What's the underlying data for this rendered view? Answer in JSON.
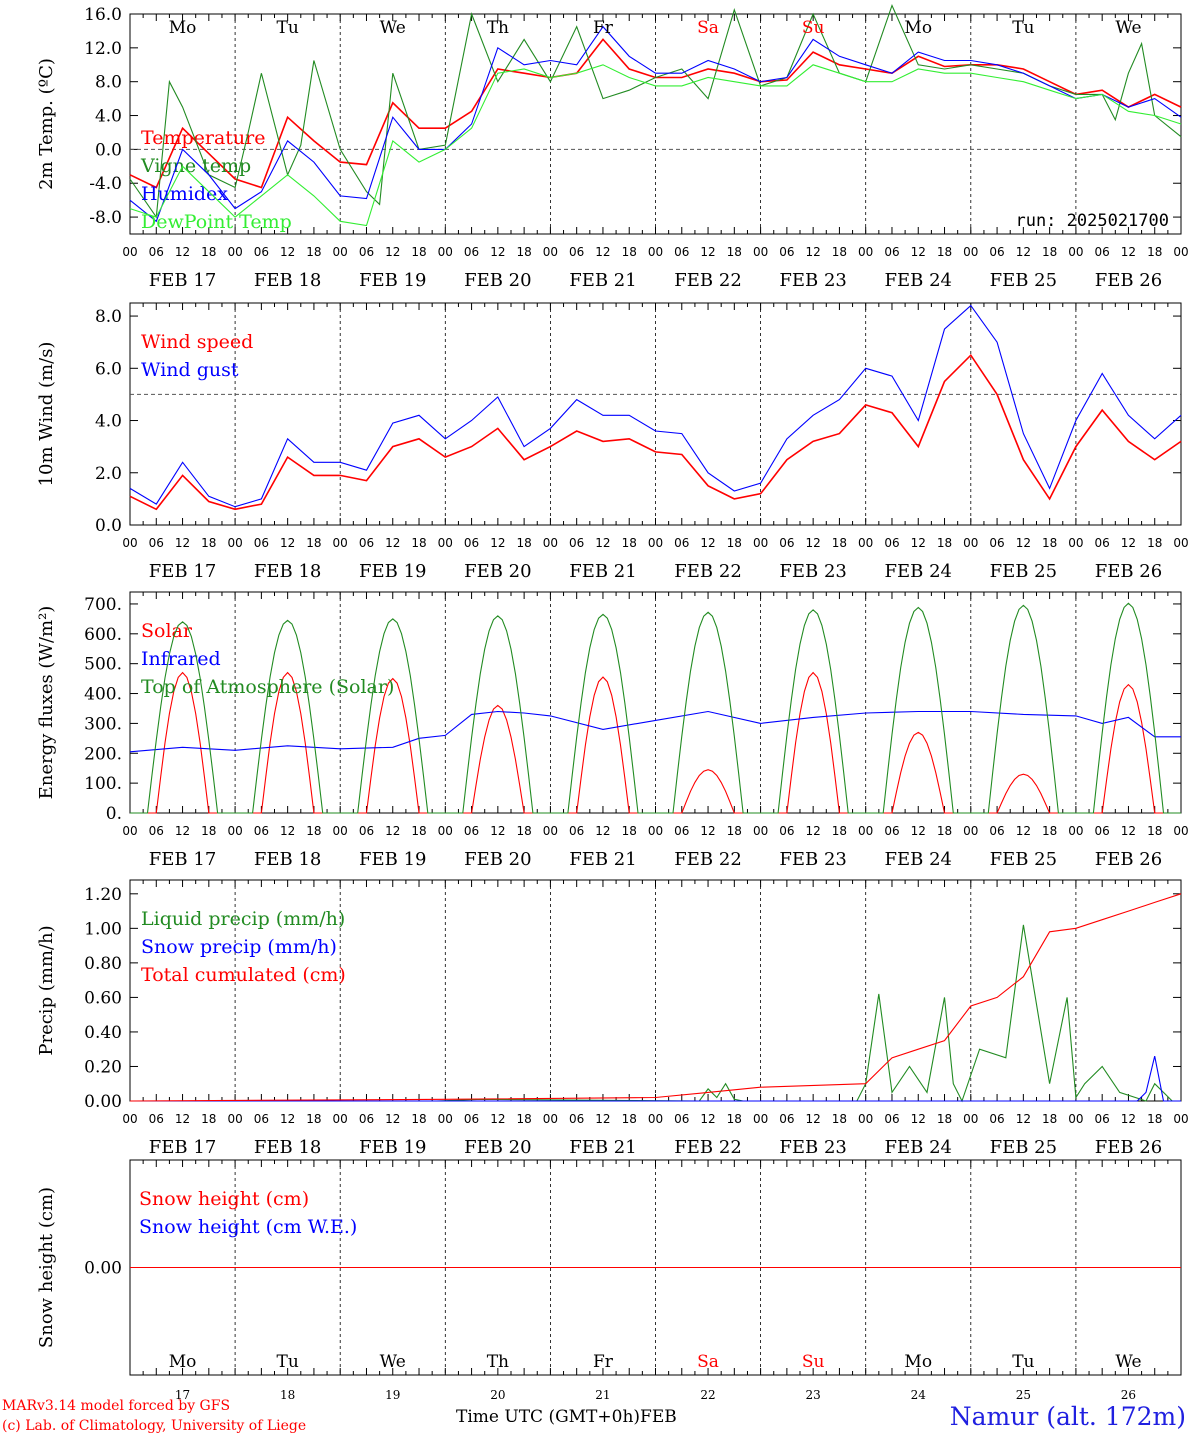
{
  "days": [
    "FEB 17",
    "FEB 18",
    "FEB 19",
    "FEB 20",
    "FEB 21",
    "FEB 22",
    "FEB 23",
    "FEB 24",
    "FEB 25",
    "FEB 26"
  ],
  "weekdays": [
    "Mo",
    "Tu",
    "We",
    "Th",
    "Fr",
    "Sa",
    "Su",
    "Mo",
    "Tu",
    "We"
  ],
  "weekday_colors": [
    "#000000",
    "#000000",
    "#000000",
    "#000000",
    "#000000",
    "#ff0000",
    "#ff0000",
    "#000000",
    "#000000",
    "#000000"
  ],
  "day_numbers": [
    "17",
    "18",
    "19",
    "20",
    "21",
    "22",
    "23",
    "24",
    "25",
    "26"
  ],
  "hour_ticks": [
    "00",
    "06",
    "12",
    "18"
  ],
  "final_hour_tick": "00",
  "footer": {
    "model": "MARv3.14 model forced by GFS",
    "lab": "(c) Lab. of Climatology, University of Liege",
    "time_label": "Time UTC (GMT+0h)",
    "month": "FEB",
    "station": "Namur (alt. 172m)"
  },
  "chart_data": [
    {
      "type": "line",
      "ylabel": "2m Temp. (ºC)",
      "ylim": [
        -10,
        16
      ],
      "yticks": [
        "16.0",
        "12.0",
        "8.0",
        "4.0",
        "0.0",
        "-4.0",
        "-8.0"
      ],
      "ytick_values": [
        16,
        12,
        8,
        4,
        0,
        -4,
        -8
      ],
      "dashed_ref": 0,
      "run": "run: 2025021700",
      "show_weekdays": true,
      "x_unit": "hours since 2025-02-17 00 UTC",
      "series": [
        {
          "name": "Temperature",
          "color": "#ff0000",
          "x": [
            0,
            6,
            12,
            18,
            24,
            30,
            36,
            42,
            48,
            54,
            60,
            66,
            72,
            78,
            84,
            90,
            96,
            102,
            108,
            114,
            120,
            126,
            132,
            138,
            144,
            150,
            156,
            162,
            168,
            174,
            180,
            186,
            192,
            198,
            204,
            210,
            216,
            222,
            228,
            234,
            240
          ],
          "y": [
            -3.0,
            -4.5,
            2.5,
            -0.5,
            -3.5,
            -4.5,
            3.8,
            1.0,
            -1.5,
            -1.8,
            5.5,
            2.5,
            2.5,
            4.5,
            9.5,
            9.0,
            8.5,
            9.0,
            13.0,
            9.5,
            8.5,
            8.5,
            9.5,
            9.0,
            8.0,
            8.2,
            11.5,
            10.0,
            9.5,
            9.0,
            11.0,
            9.8,
            10.0,
            10.0,
            9.5,
            8.0,
            6.5,
            7.0,
            5.0,
            6.5,
            5.0
          ]
        },
        {
          "name": "Vigne temp",
          "color": "#228b22",
          "x": [
            0,
            6,
            9,
            12,
            18,
            24,
            27,
            30,
            36,
            39,
            42,
            48,
            54,
            57,
            60,
            66,
            72,
            78,
            84,
            90,
            96,
            102,
            108,
            114,
            120,
            126,
            132,
            138,
            144,
            150,
            156,
            162,
            168,
            174,
            180,
            186,
            192,
            198,
            204,
            210,
            216,
            222,
            225,
            228,
            231,
            234,
            240
          ],
          "y": [
            -3.5,
            -8.0,
            8.0,
            5.0,
            -3.0,
            -4.5,
            2.0,
            9.0,
            -3.0,
            0.5,
            10.5,
            0.0,
            -5.0,
            -6.5,
            9.0,
            0.0,
            0.5,
            16.0,
            8.0,
            13.0,
            8.0,
            14.5,
            6.0,
            7.0,
            8.5,
            9.5,
            6.0,
            16.5,
            7.5,
            8.5,
            16.0,
            9.0,
            8.0,
            17.0,
            10.0,
            9.5,
            10.0,
            9.5,
            9.0,
            7.5,
            6.5,
            6.5,
            3.5,
            9.0,
            12.5,
            4.0,
            1.5
          ]
        },
        {
          "name": "Humidex",
          "color": "#0000ff",
          "x": [
            0,
            6,
            12,
            18,
            24,
            30,
            36,
            42,
            48,
            54,
            60,
            66,
            72,
            78,
            84,
            90,
            96,
            102,
            108,
            114,
            120,
            126,
            132,
            138,
            144,
            150,
            156,
            162,
            168,
            174,
            180,
            186,
            192,
            198,
            204,
            210,
            216,
            222,
            228,
            234,
            240
          ],
          "y": [
            -6.0,
            -8.5,
            0.0,
            -3.0,
            -7.0,
            -5.0,
            1.0,
            -1.5,
            -5.5,
            -5.8,
            3.8,
            0.0,
            0.0,
            3.0,
            12.0,
            10.0,
            10.5,
            10.0,
            14.5,
            11.0,
            9.0,
            9.0,
            10.5,
            9.5,
            8.0,
            8.5,
            13.0,
            11.0,
            10.0,
            9.0,
            11.5,
            10.5,
            10.5,
            10.0,
            9.0,
            7.5,
            6.0,
            6.5,
            5.0,
            6.0,
            3.8
          ]
        },
        {
          "name": "DewPoint Temp",
          "color": "#33ee33",
          "x": [
            0,
            6,
            12,
            18,
            24,
            30,
            36,
            42,
            48,
            54,
            60,
            66,
            72,
            78,
            84,
            90,
            96,
            102,
            108,
            114,
            120,
            126,
            132,
            138,
            144,
            150,
            156,
            162,
            168,
            174,
            180,
            186,
            192,
            198,
            204,
            210,
            216,
            222,
            228,
            234,
            240
          ],
          "y": [
            -7.0,
            -8.0,
            -2.0,
            -5.0,
            -8.0,
            -5.5,
            -3.0,
            -5.5,
            -8.5,
            -9.0,
            1.0,
            -1.5,
            0.0,
            2.5,
            9.0,
            9.5,
            8.5,
            9.0,
            10.0,
            8.5,
            7.5,
            7.5,
            8.5,
            8.0,
            7.5,
            7.5,
            10.0,
            9.0,
            8.0,
            8.0,
            9.5,
            9.0,
            9.0,
            8.5,
            8.0,
            7.0,
            6.0,
            6.5,
            4.5,
            4.0,
            3.0
          ]
        }
      ]
    },
    {
      "type": "line",
      "ylabel": "10m Wind (m/s)",
      "ylim": [
        0,
        8.5
      ],
      "yticks": [
        "8.0",
        "6.0",
        "4.0",
        "2.0",
        "0.0"
      ],
      "ytick_values": [
        8,
        6,
        4,
        2,
        0
      ],
      "dashed_ref": 5,
      "x_unit": "hours since 2025-02-17 00 UTC",
      "series": [
        {
          "name": "Wind speed",
          "color": "#ff0000",
          "x": [
            0,
            6,
            12,
            18,
            24,
            30,
            36,
            42,
            48,
            54,
            60,
            66,
            72,
            78,
            84,
            90,
            96,
            102,
            108,
            114,
            120,
            126,
            132,
            138,
            144,
            150,
            156,
            162,
            168,
            174,
            180,
            186,
            192,
            198,
            204,
            210,
            216,
            222,
            228,
            234,
            240
          ],
          "y": [
            1.1,
            0.6,
            1.9,
            0.9,
            0.6,
            0.8,
            2.6,
            1.9,
            1.9,
            1.7,
            3.0,
            3.3,
            2.6,
            3.0,
            3.7,
            2.5,
            3.0,
            3.6,
            3.2,
            3.3,
            2.8,
            2.7,
            1.5,
            1.0,
            1.2,
            2.5,
            3.2,
            3.5,
            4.6,
            4.3,
            3.0,
            5.5,
            6.5,
            5.0,
            2.5,
            1.0,
            3.0,
            4.4,
            3.2,
            2.5,
            3.2
          ]
        },
        {
          "name": "Wind gust",
          "color": "#0000ff",
          "x": [
            0,
            6,
            12,
            18,
            24,
            30,
            36,
            42,
            48,
            54,
            60,
            66,
            72,
            78,
            84,
            90,
            96,
            102,
            108,
            114,
            120,
            126,
            132,
            138,
            144,
            150,
            156,
            162,
            168,
            174,
            180,
            186,
            192,
            198,
            204,
            210,
            216,
            222,
            228,
            234,
            240
          ],
          "y": [
            1.4,
            0.8,
            2.4,
            1.1,
            0.7,
            1.0,
            3.3,
            2.4,
            2.4,
            2.1,
            3.9,
            4.2,
            3.3,
            4.0,
            4.9,
            3.0,
            3.7,
            4.8,
            4.2,
            4.2,
            3.6,
            3.5,
            2.0,
            1.3,
            1.6,
            3.3,
            4.2,
            4.8,
            6.0,
            5.7,
            4.0,
            7.5,
            8.4,
            7.0,
            3.5,
            1.4,
            4.0,
            5.8,
            4.2,
            3.3,
            4.2
          ]
        }
      ]
    },
    {
      "type": "line",
      "ylabel": "Energy fluxes (W/m²)",
      "ylim": [
        0,
        740
      ],
      "yticks": [
        "700.",
        "600.",
        "500.",
        "400.",
        "300.",
        "200.",
        "100.",
        "0."
      ],
      "ytick_values": [
        700,
        600,
        500,
        400,
        300,
        200,
        100,
        0
      ],
      "x_unit": "hours since 2025-02-17 00 UTC",
      "solar_peaks": [
        470,
        470,
        450,
        360,
        455,
        145,
        470,
        270,
        130,
        430
      ],
      "toa_peaks": [
        640,
        645,
        650,
        660,
        665,
        672,
        680,
        688,
        695,
        702
      ],
      "series": [
        {
          "name": "Solar",
          "color": "#ff0000"
        },
        {
          "name": "Infrared",
          "color": "#0000ff",
          "x": [
            0,
            12,
            24,
            36,
            48,
            60,
            66,
            72,
            78,
            84,
            90,
            96,
            108,
            120,
            132,
            144,
            156,
            168,
            180,
            192,
            204,
            216,
            222,
            228,
            234,
            240
          ],
          "y": [
            205,
            220,
            210,
            225,
            215,
            220,
            250,
            260,
            330,
            340,
            335,
            325,
            280,
            310,
            340,
            300,
            320,
            335,
            340,
            340,
            330,
            325,
            300,
            320,
            255,
            255
          ]
        },
        {
          "name": "Top of Atmosphere (Solar)",
          "color": "#228b22"
        }
      ]
    },
    {
      "type": "line",
      "ylabel": "Precip (mm/h)",
      "ylim": [
        0,
        1.28
      ],
      "yticks": [
        "1.20",
        "1.00",
        "0.80",
        "0.60",
        "0.40",
        "0.20",
        "0.00"
      ],
      "ytick_values": [
        1.2,
        1.0,
        0.8,
        0.6,
        0.4,
        0.2,
        0.0
      ],
      "x_unit": "hours since 2025-02-17 00 UTC",
      "series": [
        {
          "name": "Liquid precip (mm/h)",
          "color": "#228b22",
          "x": [
            0,
            70,
            80,
            130,
            132,
            134,
            136,
            138,
            140,
            166,
            168,
            171,
            174,
            178,
            182,
            186,
            188,
            190,
            194,
            200,
            204,
            210,
            214,
            216,
            218,
            222,
            226,
            232,
            234,
            238,
            240
          ],
          "y": [
            0,
            0,
            0.01,
            0,
            0.07,
            0.02,
            0.1,
            0.01,
            0,
            0,
            0.1,
            0.62,
            0.05,
            0.2,
            0.05,
            0.6,
            0.1,
            0.0,
            0.3,
            0.25,
            1.02,
            0.1,
            0.6,
            0.02,
            0.1,
            0.2,
            0.05,
            0.0,
            0.1,
            0.0,
            0.0
          ]
        },
        {
          "name": "Snow precip (mm/h)",
          "color": "#0000ff",
          "x": [
            0,
            230,
            232,
            234,
            236,
            240
          ],
          "y": [
            0,
            0,
            0.05,
            0.26,
            0.0,
            0.0
          ]
        },
        {
          "name": "Total cumulated (cm)",
          "color": "#ff0000",
          "x": [
            0,
            72,
            120,
            132,
            144,
            168,
            174,
            180,
            186,
            192,
            198,
            204,
            210,
            216,
            222,
            228,
            234,
            240
          ],
          "y": [
            0,
            0.01,
            0.02,
            0.05,
            0.08,
            0.1,
            0.25,
            0.3,
            0.35,
            0.55,
            0.6,
            0.72,
            0.98,
            1.0,
            1.05,
            1.1,
            1.15,
            1.2
          ]
        }
      ]
    },
    {
      "type": "line",
      "ylabel": "Snow height (cm)",
      "ylim": [
        -1,
        1
      ],
      "yticks": [
        "0.00"
      ],
      "ytick_values": [
        0
      ],
      "x_unit": "hours since 2025-02-17 00 UTC",
      "series": [
        {
          "name": "Snow height (cm)",
          "color": "#ff0000",
          "x": [
            0,
            240
          ],
          "y": [
            0,
            0
          ]
        },
        {
          "name": "Snow height (cm W.E.)",
          "color": "#0000ff"
        }
      ]
    }
  ]
}
